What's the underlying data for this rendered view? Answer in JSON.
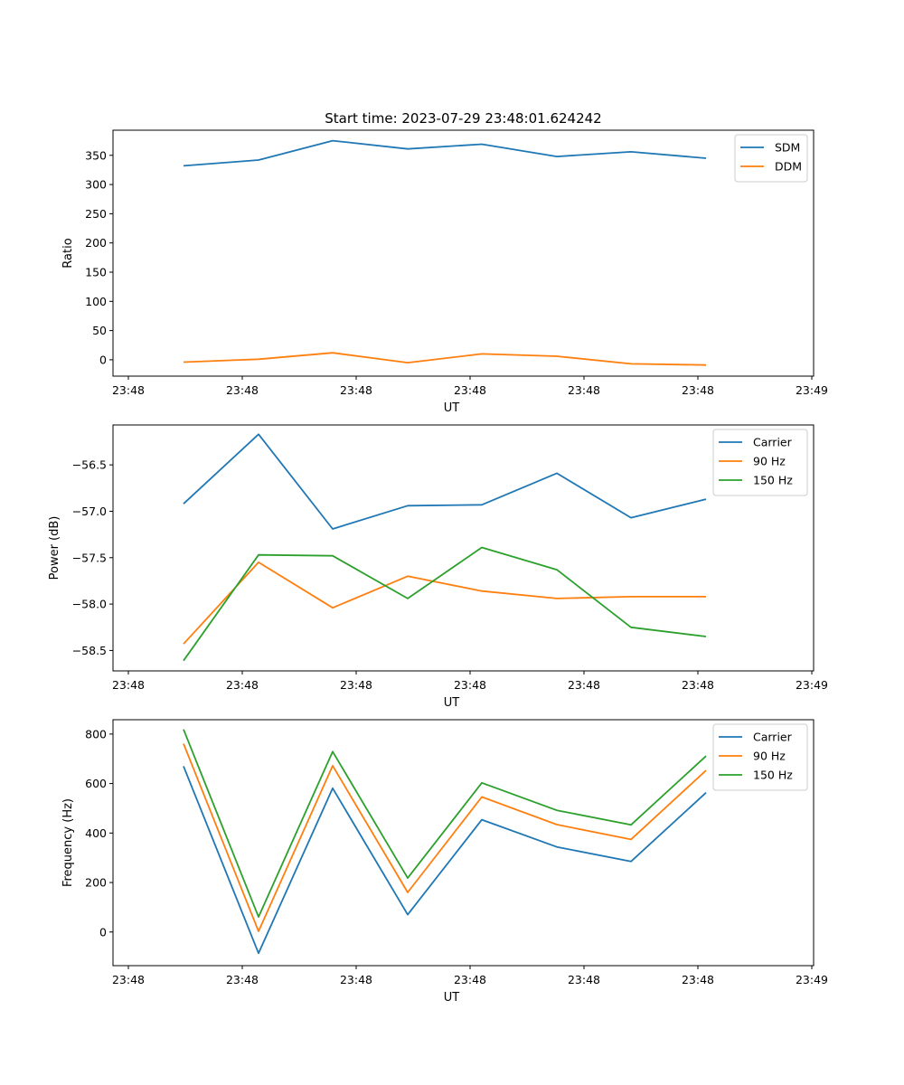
{
  "figure": {
    "suptitle": "Start time: 2023-07-29 23:48:01.624242"
  },
  "chart_data": [
    {
      "type": "line",
      "title": "Start time: 2023-07-29 23:48:01.624242",
      "xlabel": "UT",
      "ylabel": "Ratio",
      "x_ticks": [
        "23:48",
        "23:48",
        "23:48",
        "23:48",
        "23:48",
        "23:48",
        "23:49"
      ],
      "ylim": [
        -28,
        393
      ],
      "y_ticks": [
        0,
        50,
        100,
        150,
        200,
        250,
        300,
        350
      ],
      "y_tick_labels": [
        "0",
        "50",
        "100",
        "150",
        "200",
        "250",
        "300",
        "350"
      ],
      "grid": false,
      "legend": "top-right",
      "series": [
        {
          "name": "SDM",
          "color": "#1f77b4",
          "values": [
            332,
            342,
            375,
            361,
            369,
            348,
            356,
            345
          ]
        },
        {
          "name": "DDM",
          "color": "#ff7f0e",
          "values": [
            -4,
            1,
            12,
            -5,
            10,
            6,
            -7,
            -9
          ]
        }
      ]
    },
    {
      "type": "line",
      "xlabel": "UT",
      "ylabel": "Power (dB)",
      "x_ticks": [
        "23:48",
        "23:48",
        "23:48",
        "23:48",
        "23:48",
        "23:48",
        "23:49"
      ],
      "ylim": [
        -58.72,
        -56.07
      ],
      "y_ticks": [
        -58.5,
        -58.0,
        -57.5,
        -57.0,
        -56.5
      ],
      "y_tick_labels": [
        "−58.5",
        "−58.0",
        "−57.5",
        "−57.0",
        "−56.5"
      ],
      "grid": false,
      "legend": "top-right",
      "series": [
        {
          "name": "Carrier",
          "color": "#1f77b4",
          "values": [
            -56.92,
            -56.17,
            -57.19,
            -56.94,
            -56.93,
            -56.59,
            -57.07,
            -56.87
          ]
        },
        {
          "name": "90 Hz",
          "color": "#ff7f0e",
          "values": [
            -58.43,
            -57.55,
            -58.04,
            -57.7,
            -57.86,
            -57.94,
            -57.92,
            -57.92
          ]
        },
        {
          "name": "150 Hz",
          "color": "#2ca02c",
          "values": [
            -58.61,
            -57.47,
            -57.48,
            -57.94,
            -57.39,
            -57.63,
            -58.25,
            -58.35
          ]
        }
      ]
    },
    {
      "type": "line",
      "xlabel": "UT",
      "ylabel": "Frequency (Hz)",
      "x_ticks": [
        "23:48",
        "23:48",
        "23:48",
        "23:48",
        "23:48",
        "23:48",
        "23:49"
      ],
      "ylim": [
        -136,
        858
      ],
      "y_ticks": [
        0,
        200,
        400,
        600,
        800
      ],
      "y_tick_labels": [
        "0",
        "200",
        "400",
        "600",
        "800"
      ],
      "grid": false,
      "legend": "top-right",
      "series": [
        {
          "name": "Carrier",
          "color": "#1f77b4",
          "values": [
            670,
            -86,
            581,
            70,
            454,
            344,
            285,
            563
          ]
        },
        {
          "name": "90 Hz",
          "color": "#ff7f0e",
          "values": [
            761,
            3,
            672,
            160,
            546,
            434,
            374,
            653
          ]
        },
        {
          "name": "150 Hz",
          "color": "#2ca02c",
          "values": [
            819,
            61,
            729,
            218,
            603,
            492,
            433,
            711
          ]
        }
      ]
    }
  ]
}
